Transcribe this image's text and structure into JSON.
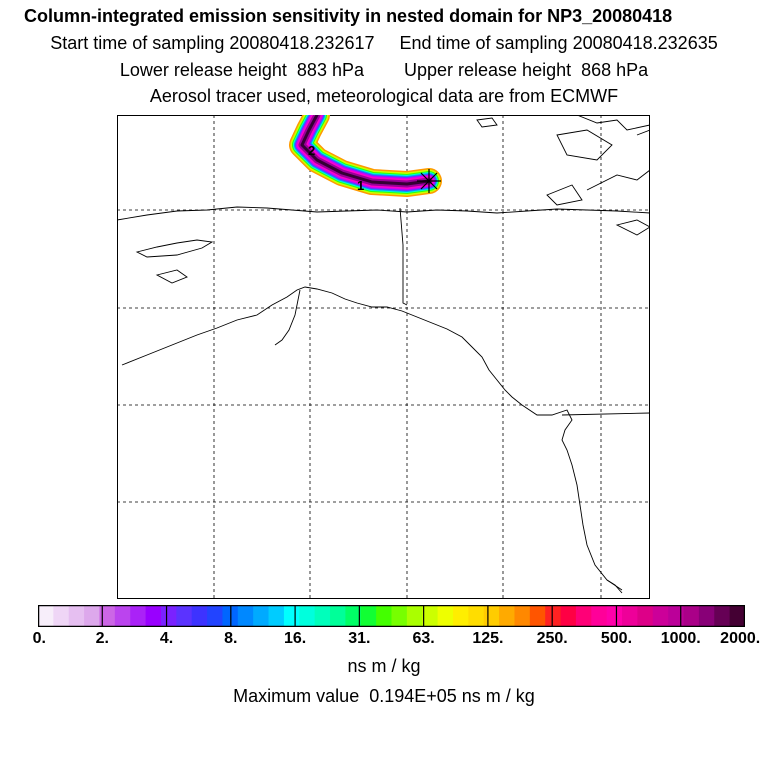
{
  "header": {
    "title": "Column-integrated emission sensitivity in nested domain for NP3_20080418",
    "line2": "Start time of sampling 20080418.232617     End time of sampling 20080418.232635",
    "line3": "Lower release height  883 hPa        Upper release height  868 hPa",
    "line4": "Aerosol tracer used, meteorological data are from ECMWF"
  },
  "map": {
    "plume_markers": [
      "1",
      "2"
    ],
    "release_marker": "asterisk",
    "plume_colors": [
      "#ff9900",
      "#ccff00",
      "#33ff00",
      "#00ffcc",
      "#0099ff",
      "#6633ff",
      "#cc00ff",
      "#ff00cc",
      "#990099",
      "#330033"
    ]
  },
  "colorbar": {
    "colors": [
      "#f7eefa",
      "#efd6f6",
      "#e6bff1",
      "#dda8ec",
      "#cc66e6",
      "#bb44ee",
      "#aa22f7",
      "#9900ff",
      "#7a22ff",
      "#5b33ff",
      "#3d33ff",
      "#2244ff",
      "#0066ff",
      "#0088ff",
      "#00aaff",
      "#00ccff",
      "#00ffff",
      "#00ffdd",
      "#00ffbb",
      "#00ff99",
      "#00ff66",
      "#11ff33",
      "#44ff00",
      "#77ff00",
      "#aaff00",
      "#ccff00",
      "#eeff00",
      "#ffee00",
      "#ffdd00",
      "#ffcc00",
      "#ffaa00",
      "#ff8800",
      "#ff5500",
      "#ff2222",
      "#ff0044",
      "#ff0077",
      "#ff0099",
      "#ff00aa",
      "#ee0099",
      "#dd0088",
      "#cc0099",
      "#bb0099",
      "#aa0088",
      "#880077",
      "#660055",
      "#440033"
    ],
    "tick_labels": [
      "0.",
      "2.",
      "4.",
      "8.",
      "16.",
      "31.",
      "63.",
      "125.",
      "250.",
      "500.",
      "1000.",
      "2000."
    ],
    "unit": "ns m / kg"
  },
  "footer": {
    "max_value": "Maximum value  0.194E+05 ns m / kg"
  }
}
